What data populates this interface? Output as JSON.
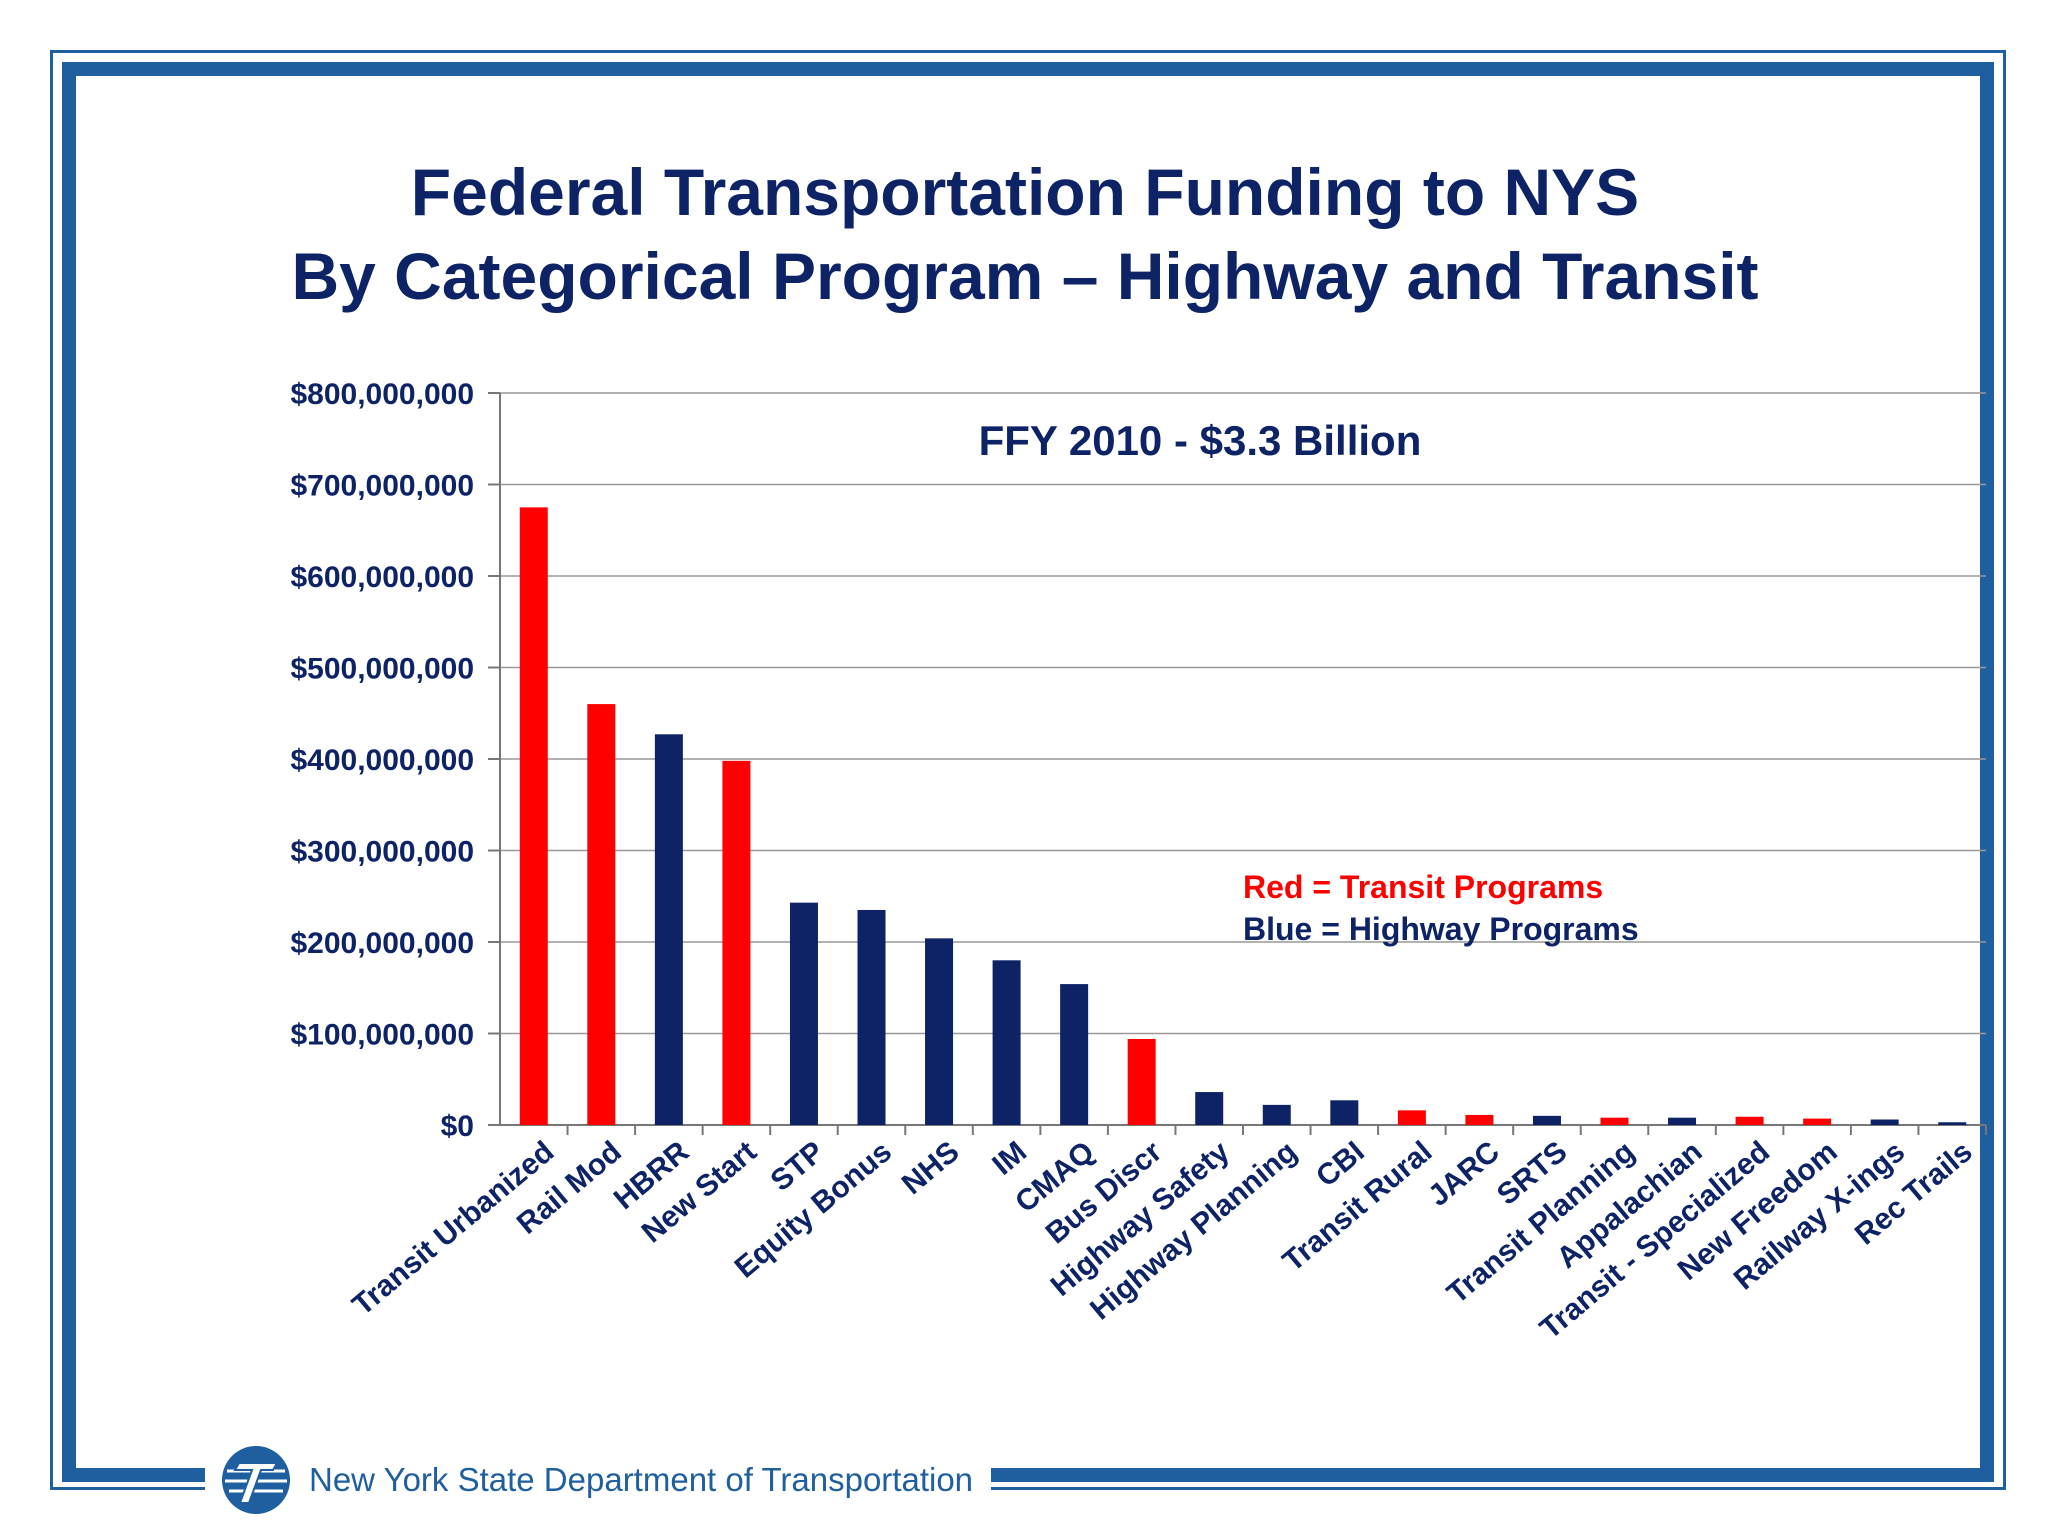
{
  "title": {
    "line1": "Federal Transportation Funding to NYS",
    "line2": "By Categorical Program – Highway and Transit"
  },
  "footer": {
    "org": "New York State Department of Transportation",
    "logo_icon": "nysdot-logo-icon"
  },
  "colors": {
    "transit": "#ff0000",
    "highway": "#0d2366",
    "frame": "#1f5fa0",
    "text": "#0d2366"
  },
  "chart_data": {
    "type": "bar",
    "title": "FFY 2010  - $3.3 Billion",
    "xlabel": "",
    "ylabel": "",
    "ylim": [
      0,
      800000000
    ],
    "y_ticks": [
      0,
      100000000,
      200000000,
      300000000,
      400000000,
      500000000,
      600000000,
      700000000,
      800000000
    ],
    "y_tick_labels": [
      "$0",
      "$100,000,000",
      "$200,000,000",
      "$300,000,000",
      "$400,000,000",
      "$500,000,000",
      "$600,000,000",
      "$700,000,000",
      "$800,000,000"
    ],
    "grid": true,
    "legend_notes": [
      "Red = Transit Programs",
      "Blue = Highway Programs"
    ],
    "categories": [
      "Transit Urbanized",
      "Rail Mod",
      "HBRR",
      "New Start",
      "STP",
      "Equity Bonus",
      "NHS",
      "IM",
      "CMAQ",
      "Bus Discr",
      "Highway Safety",
      "Highway Planning",
      "CBI",
      "Transit Rural",
      "JARC",
      "SRTS",
      "Transit Planning",
      "Appalachian",
      "Transit - Specialized",
      "New Freedom",
      "Railway X-ings",
      "Rec Trails"
    ],
    "values": [
      675000000,
      460000000,
      427000000,
      398000000,
      243000000,
      235000000,
      204000000,
      180000000,
      154000000,
      94000000,
      36000000,
      22000000,
      27000000,
      16000000,
      11000000,
      10000000,
      8000000,
      8000000,
      9000000,
      7000000,
      6000000,
      3000000
    ],
    "program": [
      "transit",
      "transit",
      "highway",
      "transit",
      "highway",
      "highway",
      "highway",
      "highway",
      "highway",
      "transit",
      "highway",
      "highway",
      "highway",
      "transit",
      "transit",
      "highway",
      "transit",
      "highway",
      "transit",
      "transit",
      "highway",
      "highway"
    ]
  }
}
